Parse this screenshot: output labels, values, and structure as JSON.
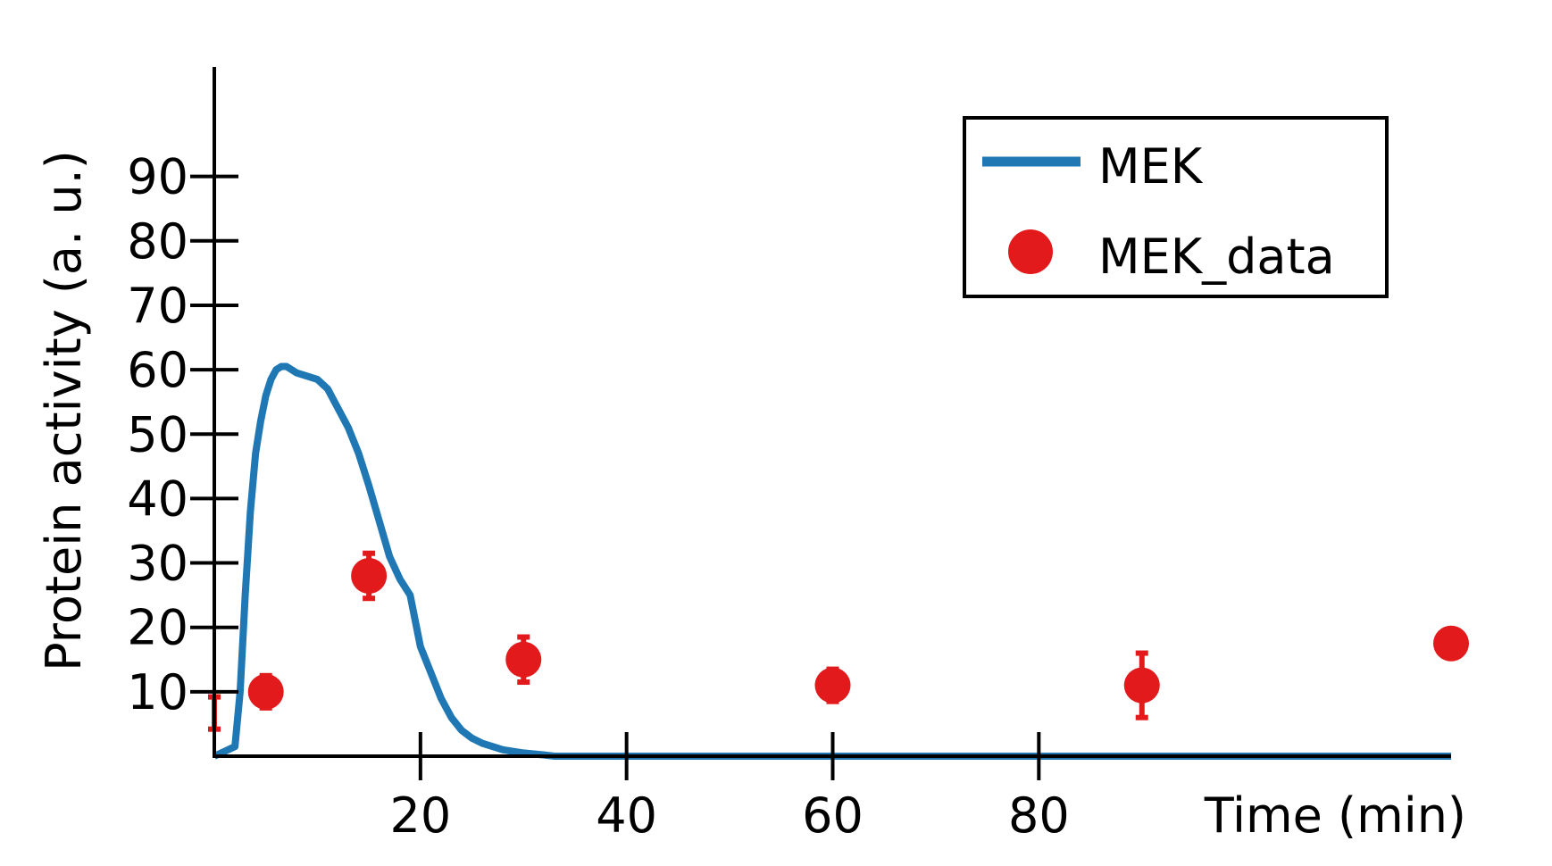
{
  "chart_data": {
    "type": "line",
    "title": "",
    "xlabel": "Time (min)",
    "ylabel": "Protein activity (a. u.)",
    "xlim": [
      0,
      120
    ],
    "ylim": [
      0,
      107
    ],
    "x_ticks": [
      20,
      40,
      60,
      80
    ],
    "y_ticks": [
      10,
      20,
      30,
      40,
      50,
      60,
      70,
      80,
      90
    ],
    "grid": false,
    "legend_position": "top-right",
    "series": [
      {
        "name": "MEK",
        "kind": "line",
        "color": "#1f77b4",
        "x": [
          0,
          2,
          2.5,
          3,
          3.5,
          4,
          4.5,
          5,
          5.5,
          6,
          6.5,
          7,
          7.5,
          8,
          9,
          10,
          11,
          12,
          13,
          14,
          15,
          16,
          17,
          18,
          19,
          20,
          21,
          22,
          23,
          24,
          25,
          26,
          28,
          30,
          32,
          33,
          40,
          60,
          80,
          100,
          120
        ],
        "y": [
          0,
          1.5,
          10,
          25,
          38,
          47,
          52,
          56,
          58.5,
          60,
          60.5,
          60.5,
          60,
          59.5,
          59,
          58.5,
          57,
          54,
          51,
          47,
          42,
          36.5,
          31,
          27.5,
          25,
          17,
          13,
          9,
          6,
          4,
          2.8,
          2,
          1,
          0.5,
          0.2,
          0,
          0,
          0,
          0,
          0,
          0
        ]
      },
      {
        "name": "MEK_data",
        "kind": "scatter",
        "color": "#e31a1c",
        "x": [
          0,
          5,
          15,
          30,
          60,
          90,
          120
        ],
        "y": [
          6.7,
          10,
          28,
          15,
          11,
          11,
          17.5
        ],
        "error": [
          2.5,
          2.5,
          3.5,
          3.5,
          2.5,
          5,
          1.5
        ],
        "marker_visible": [
          false,
          true,
          true,
          true,
          true,
          true,
          true
        ]
      }
    ]
  }
}
